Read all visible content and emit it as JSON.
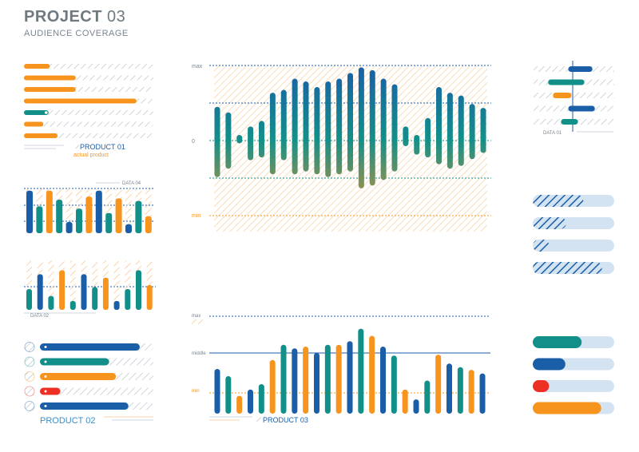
{
  "header": {
    "title": "PROJECT",
    "title_num": "03",
    "subtitle": "AUDIENCE COVERAGE"
  },
  "colors": {
    "orange": "#f7941d",
    "blue": "#1a5ea8",
    "teal": "#138f8a",
    "red": "#ee2f23",
    "track": "#d3e3f1",
    "hatch_orange": "#f9d4aa",
    "hatch_grey": "#cfd6dc"
  },
  "chart_data": [
    {
      "id": "product-01",
      "type": "bar",
      "orientation": "horizontal",
      "label": "PRODUCT 01",
      "sublabel": "actual product",
      "values": [
        0.2,
        0.4,
        0.4,
        0.87,
        0.19,
        0.15,
        0.26
      ],
      "colors": [
        "orange",
        "orange",
        "orange",
        "orange",
        "teal",
        "orange",
        "orange"
      ]
    },
    {
      "id": "data-04",
      "type": "bar",
      "label": "DATA 04",
      "values": [
        0.95,
        0.6,
        0.95,
        0.75,
        0.25,
        0.55,
        0.82,
        0.95,
        0.45,
        0.78,
        0.2,
        0.72,
        0.38
      ],
      "colors": [
        "blue",
        "teal",
        "orange",
        "teal",
        "blue",
        "teal",
        "orange",
        "blue",
        "teal",
        "orange",
        "blue",
        "teal",
        "orange"
      ]
    },
    {
      "id": "data-02",
      "type": "bar",
      "label": "DATA 02",
      "values": [
        0.42,
        0.72,
        0.28,
        0.8,
        0.18,
        0.72,
        0.46,
        0.65,
        0.18,
        0.42,
        0.8,
        0.5
      ],
      "colors": [
        "teal",
        "blue",
        "teal",
        "orange",
        "teal",
        "blue",
        "teal",
        "orange",
        "blue",
        "teal",
        "teal",
        "orange"
      ]
    },
    {
      "id": "product-02",
      "type": "bar",
      "orientation": "horizontal",
      "label": "PRODUCT 02",
      "values": [
        0.88,
        0.61,
        0.67,
        0.18,
        0.78
      ],
      "colors": [
        "blue",
        "teal",
        "orange",
        "red",
        "blue"
      ]
    },
    {
      "id": "main-range",
      "type": "bar",
      "axis_labels": [
        "max",
        "0",
        "min"
      ],
      "ranges": [
        [
          0.6,
          -0.65
        ],
        [
          0.5,
          -0.5
        ],
        [
          0.1,
          -0.05
        ],
        [
          0.25,
          -0.35
        ],
        [
          0.35,
          -0.3
        ],
        [
          0.85,
          -0.6
        ],
        [
          0.9,
          -0.35
        ],
        [
          1.1,
          -0.6
        ],
        [
          1.05,
          -0.55
        ],
        [
          0.95,
          -0.6
        ],
        [
          1.05,
          -0.65
        ],
        [
          1.1,
          -0.6
        ],
        [
          1.2,
          -0.55
        ],
        [
          1.3,
          -0.85
        ],
        [
          1.25,
          -0.8
        ],
        [
          1.1,
          -0.7
        ],
        [
          1.0,
          -0.55
        ],
        [
          0.25,
          -0.1
        ],
        [
          0.1,
          -0.25
        ],
        [
          0.4,
          -0.3
        ],
        [
          0.95,
          -0.42
        ],
        [
          0.85,
          -0.5
        ],
        [
          0.8,
          -0.45
        ],
        [
          0.65,
          -0.33
        ],
        [
          0.58,
          -0.22
        ]
      ]
    },
    {
      "id": "product-03",
      "type": "bar",
      "label": "PRODUCT 03",
      "axis_labels": [
        "max",
        "middle",
        "min"
      ],
      "values": [
        0.5,
        0.42,
        0.2,
        0.27,
        0.33,
        0.6,
        0.77,
        0.73,
        0.75,
        0.68,
        0.77,
        0.77,
        0.81,
        0.95,
        0.87,
        0.75,
        0.65,
        0.27,
        0.16,
        0.37,
        0.66,
        0.56,
        0.52,
        0.49,
        0.45
      ],
      "colors": [
        "blue",
        "teal",
        "orange",
        "blue",
        "teal",
        "orange",
        "teal",
        "blue",
        "orange",
        "blue",
        "teal",
        "orange",
        "blue",
        "teal",
        "orange",
        "blue",
        "teal",
        "orange",
        "blue",
        "teal",
        "orange",
        "blue",
        "teal",
        "orange",
        "blue"
      ]
    },
    {
      "id": "data-01",
      "type": "bar",
      "orientation": "horizontal",
      "label": "DATA 01",
      "ranges": [
        [
          0.43,
          0.73
        ],
        [
          0.18,
          0.63
        ],
        [
          0.24,
          0.47
        ],
        [
          0.43,
          0.76
        ],
        [
          0.34,
          0.55
        ]
      ],
      "colors": [
        "blue",
        "teal",
        "orange",
        "blue",
        "teal"
      ]
    },
    {
      "id": "hatched-progress",
      "type": "bar",
      "orientation": "horizontal",
      "values": [
        0.62,
        0.41,
        0.2,
        0.85
      ],
      "colors": [
        "blue",
        "blue",
        "blue",
        "blue"
      ]
    },
    {
      "id": "solid-progress",
      "type": "bar",
      "orientation": "horizontal",
      "values": [
        0.6,
        0.4,
        0.2,
        0.84
      ],
      "colors": [
        "teal",
        "blue",
        "red",
        "orange"
      ]
    }
  ]
}
